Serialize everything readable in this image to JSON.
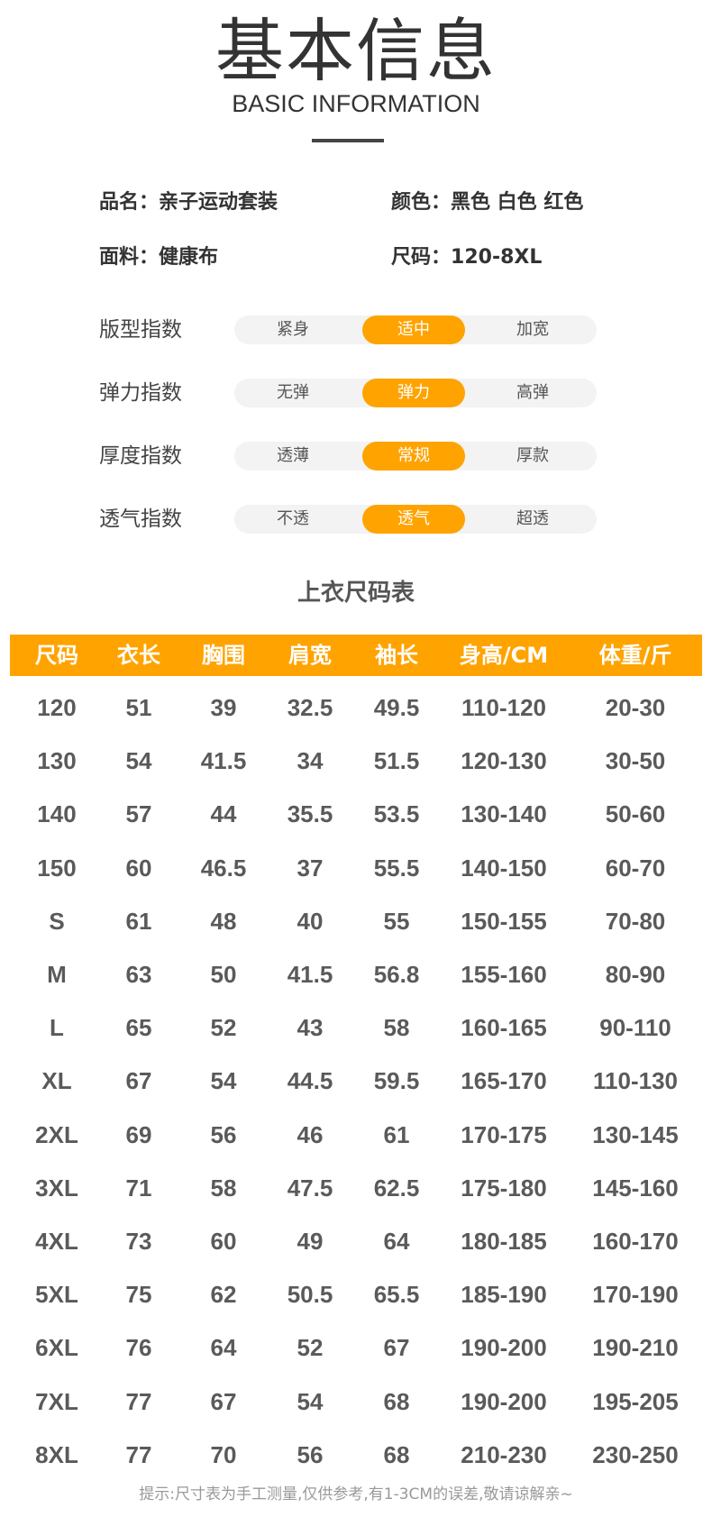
{
  "header": {
    "title": "基本信息",
    "subtitle": "BASIC INFORMATION"
  },
  "info": {
    "name_label": "品名：",
    "name_value": "亲子运动套装",
    "color_label": "颜色：",
    "color_value": "黑色 白色 红色",
    "fabric_label": "面料：",
    "fabric_value": "健康布",
    "size_label": "尺码：",
    "size_value": "120-8XL"
  },
  "indices": [
    {
      "label": "版型指数",
      "options": [
        "紧身",
        "适中",
        "加宽"
      ],
      "selected": 1
    },
    {
      "label": "弹力指数",
      "options": [
        "无弹",
        "弹力",
        "高弹"
      ],
      "selected": 1
    },
    {
      "label": "厚度指数",
      "options": [
        "透薄",
        "常规",
        "厚款"
      ],
      "selected": 1
    },
    {
      "label": "透气指数",
      "options": [
        "不透",
        "透气",
        "超透"
      ],
      "selected": 1
    }
  ],
  "colors": {
    "accent": "#ffa300",
    "track": "#f3f3f3",
    "text": "#5a5a5a"
  },
  "size_table": {
    "title": "上衣尺码表",
    "columns": [
      "尺码",
      "衣长",
      "胸围",
      "肩宽",
      "袖长",
      "身高/CM",
      "体重/斤"
    ],
    "rows": [
      [
        "120",
        "51",
        "39",
        "32.5",
        "49.5",
        "110-120",
        "20-30"
      ],
      [
        "130",
        "54",
        "41.5",
        "34",
        "51.5",
        "120-130",
        "30-50"
      ],
      [
        "140",
        "57",
        "44",
        "35.5",
        "53.5",
        "130-140",
        "50-60"
      ],
      [
        "150",
        "60",
        "46.5",
        "37",
        "55.5",
        "140-150",
        "60-70"
      ],
      [
        "S",
        "61",
        "48",
        "40",
        "55",
        "150-155",
        "70-80"
      ],
      [
        "M",
        "63",
        "50",
        "41.5",
        "56.8",
        "155-160",
        "80-90"
      ],
      [
        "L",
        "65",
        "52",
        "43",
        "58",
        "160-165",
        "90-110"
      ],
      [
        "XL",
        "67",
        "54",
        "44.5",
        "59.5",
        "165-170",
        "110-130"
      ],
      [
        "2XL",
        "69",
        "56",
        "46",
        "61",
        "170-175",
        "130-145"
      ],
      [
        "3XL",
        "71",
        "58",
        "47.5",
        "62.5",
        "175-180",
        "145-160"
      ],
      [
        "4XL",
        "73",
        "60",
        "49",
        "64",
        "180-185",
        "160-170"
      ],
      [
        "5XL",
        "75",
        "62",
        "50.5",
        "65.5",
        "185-190",
        "170-190"
      ],
      [
        "6XL",
        "76",
        "64",
        "52",
        "67",
        "190-200",
        "190-210"
      ],
      [
        "7XL",
        "77",
        "67",
        "54",
        "68",
        "190-200",
        "195-205"
      ],
      [
        "8XL",
        "77",
        "70",
        "56",
        "68",
        "210-230",
        "230-250"
      ]
    ],
    "note": "提示:尺寸表为手工测量,仅供参考,有1-3CM的误差,敬请谅解亲~"
  }
}
